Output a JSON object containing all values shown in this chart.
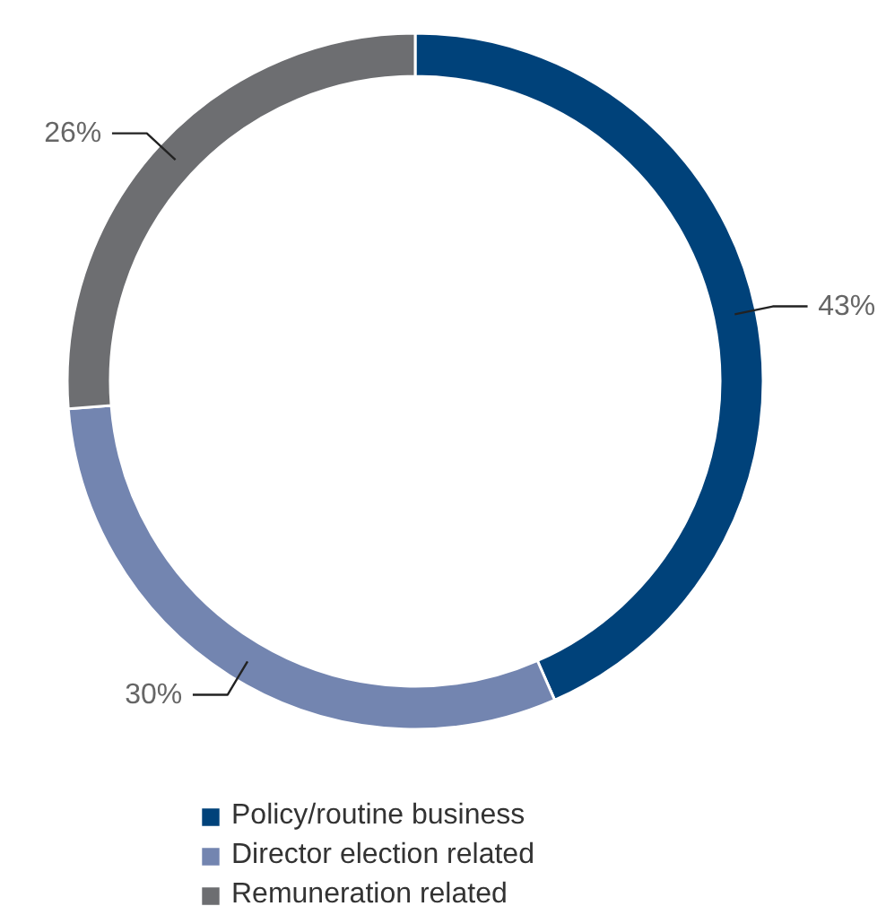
{
  "chart_data": {
    "type": "donut",
    "categories": [
      "Policy/routine business",
      "Director election related",
      "Remuneration related"
    ],
    "values": [
      43,
      30,
      26
    ],
    "colors": [
      "#00427a",
      "#7385b0",
      "#6d6e71"
    ],
    "value_labels": [
      "43%",
      "30%",
      "26%"
    ],
    "legend": "bottom"
  }
}
